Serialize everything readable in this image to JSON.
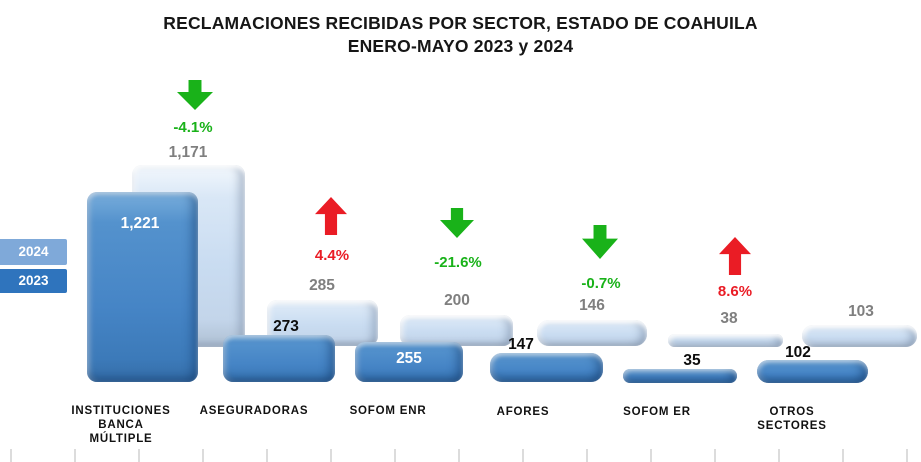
{
  "title": {
    "line1": "RECLAMACIONES RECIBIDAS POR SECTOR, ESTADO DE COAHUILA",
    "line2": "ENERO-MAYO 2023 y 2024"
  },
  "legend": {
    "items": [
      {
        "label": "2024",
        "color": "#7FA9D9"
      },
      {
        "label": "2023",
        "color": "#2F74BD"
      }
    ]
  },
  "colors": {
    "bar_2023": "#4685C6",
    "bar_2024": "#CBDEF2",
    "increase_red": "#EA1C25",
    "decrease_green": "#19B219",
    "label_2024_gray": "#7F7F7F",
    "label_2023_black": "#0D0D0D",
    "title_text": "#161616"
  },
  "chart_data": {
    "type": "bar",
    "title": "RECLAMACIONES RECIBIDAS POR SECTOR, ESTADO DE COAHUILA ENERO-MAYO 2023 y 2024",
    "categories": [
      "INSTITUCIONES BANCA MÚLTIPLE",
      "ASEGURADORAS",
      "SOFOM ENR",
      "AFORES",
      "SOFOM ER",
      "OTROS SECTORES"
    ],
    "series": [
      {
        "name": "2023",
        "values": [
          1221,
          273,
          255,
          147,
          35,
          102
        ]
      },
      {
        "name": "2024",
        "values": [
          1171,
          285,
          200,
          146,
          38,
          103
        ]
      }
    ],
    "pct_change": [
      "-4.1%",
      "4.4%",
      "-21.6%",
      "-0.7%",
      "8.6%",
      null
    ],
    "legend_position": "left",
    "grid": false,
    "groups": [
      {
        "line1": "INSTITUCIONES",
        "line2": "BANCA",
        "line3": "MÚLTIPLE",
        "v2023": "1,221",
        "v2024": "1,171",
        "change": "-4.1%",
        "direction": "down"
      },
      {
        "line1": "ASEGURADORAS",
        "v2023": "273",
        "v2024": "285",
        "change": "4.4%",
        "direction": "up"
      },
      {
        "line1": "SOFOM ENR",
        "v2023": "255",
        "v2024": "200",
        "change": "-21.6%",
        "direction": "down"
      },
      {
        "line1": "AFORES",
        "v2023": "147",
        "v2024": "146",
        "change": "-0.7%",
        "direction": "down"
      },
      {
        "line1": "SOFOM ER",
        "v2023": "35",
        "v2024": "38",
        "change": "8.6%",
        "direction": "up"
      },
      {
        "line1": "OTROS",
        "line2": "SECTORES",
        "v2023": "102",
        "v2024": "103"
      }
    ]
  }
}
